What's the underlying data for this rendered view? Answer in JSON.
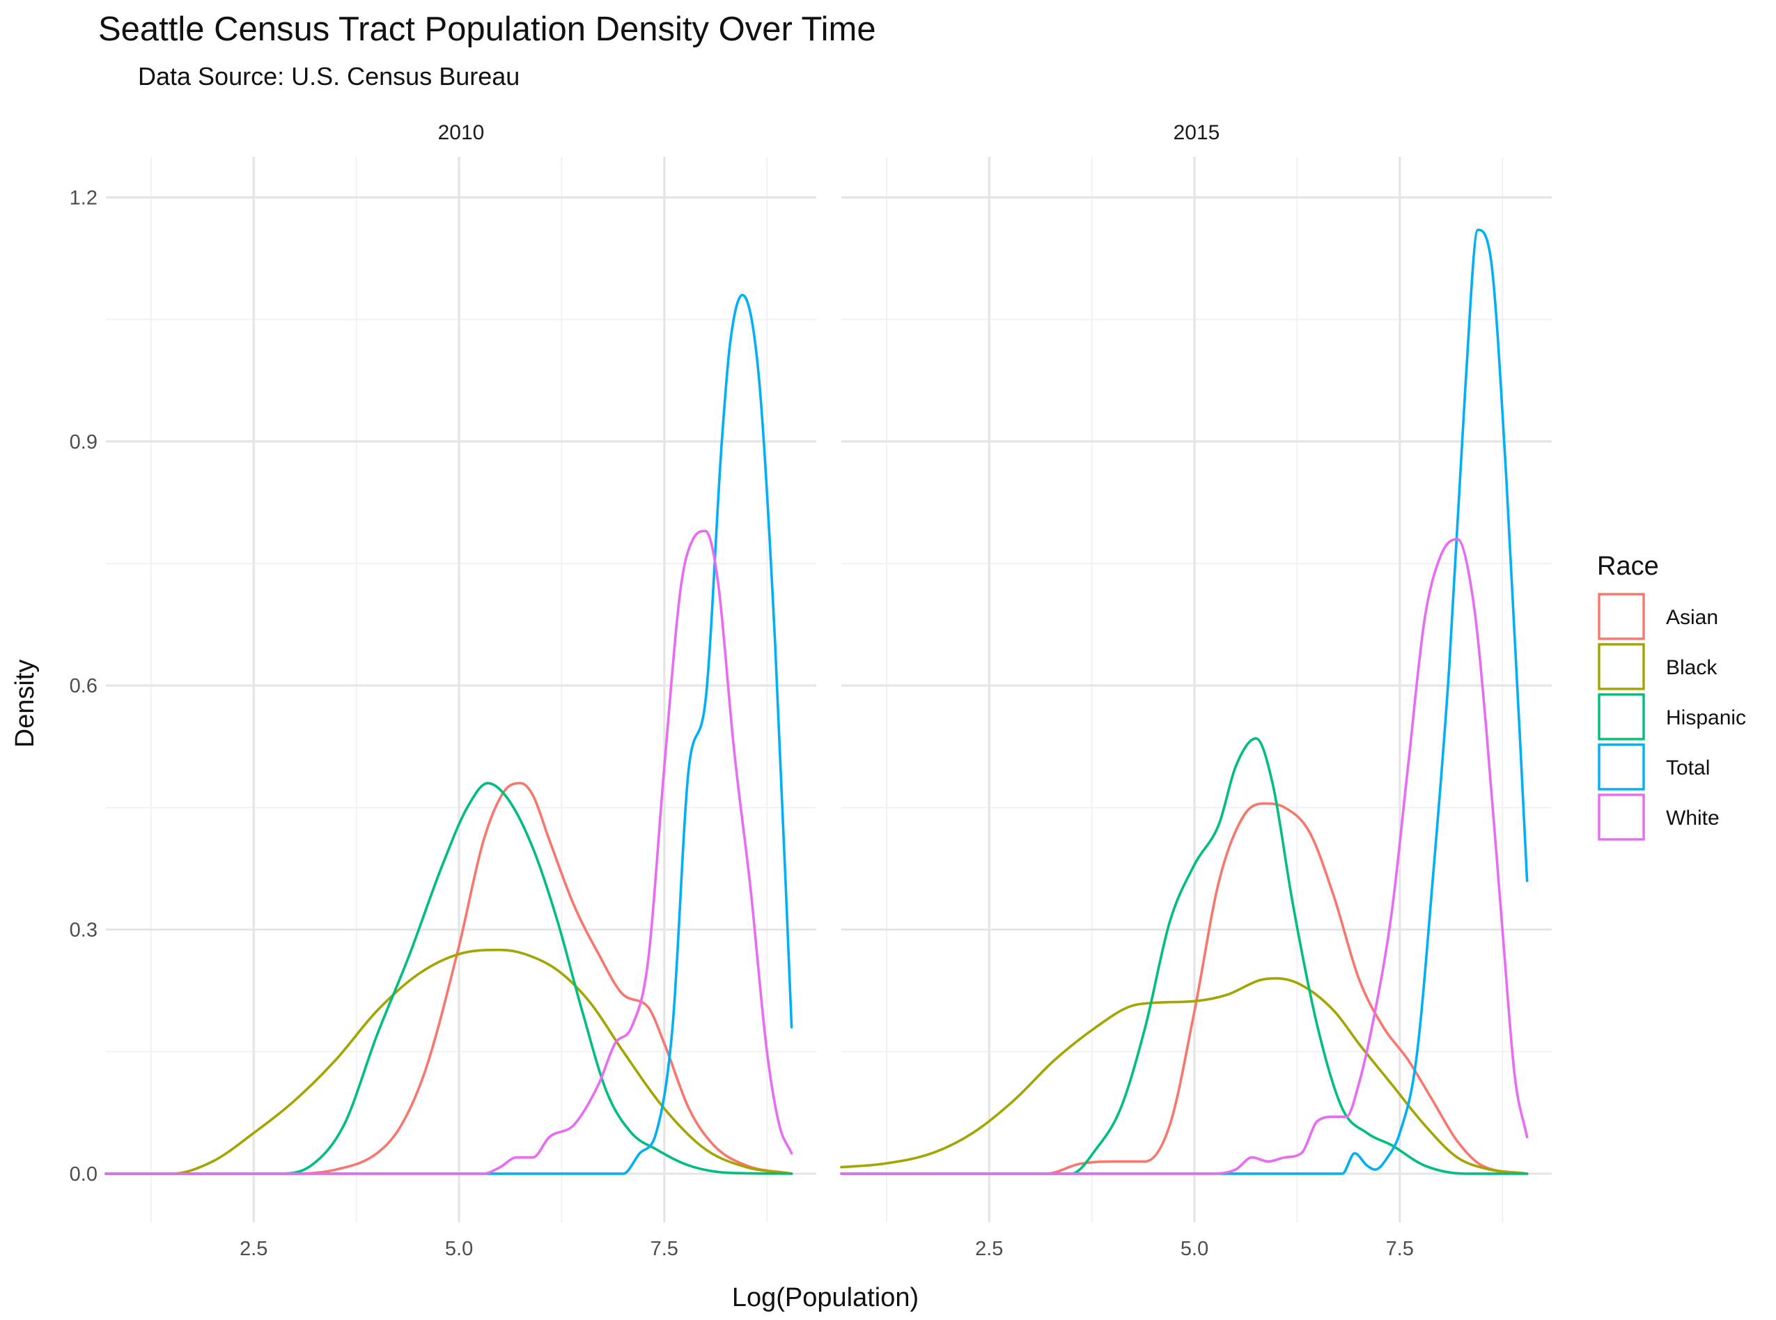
{
  "chart_data": {
    "type": "line",
    "title": "Seattle Census Tract Population Density Over Time",
    "subtitle": "Data Source: U.S. Census Bureau",
    "xlabel": "Log(Population)",
    "ylabel": "Density",
    "xlim": [
      0.7,
      9.35
    ],
    "ylim": [
      -0.06,
      1.25
    ],
    "x_ticks": [
      2.5,
      5.0,
      7.5
    ],
    "x_tick_labels": [
      "2.5",
      "5.0",
      "7.5"
    ],
    "y_ticks": [
      0.0,
      0.3,
      0.6,
      0.9,
      1.2
    ],
    "y_tick_labels": [
      "0.0",
      "0.3",
      "0.6",
      "0.9",
      "1.2"
    ],
    "grid": true,
    "legend": {
      "title": "Race",
      "position": "right"
    },
    "colors": {
      "Asian": "#F8766D",
      "Black": "#A3A500",
      "Hispanic": "#00BF7D",
      "Total": "#00B0F6",
      "White": "#E76BF3"
    },
    "series_order": [
      "Asian",
      "Black",
      "Hispanic",
      "Total",
      "White"
    ],
    "facets": [
      {
        "label": "2010",
        "series": [
          {
            "name": "Asian",
            "x": [
              0.7,
              3.0,
              3.5,
              4.0,
              4.3,
              4.6,
              5.0,
              5.3,
              5.55,
              5.75,
              5.9,
              6.1,
              6.4,
              6.7,
              7.0,
              7.3,
              7.5,
              7.8,
              8.1,
              8.5,
              9.05
            ],
            "y": [
              0,
              0,
              0.005,
              0.025,
              0.06,
              0.13,
              0.28,
              0.41,
              0.47,
              0.48,
              0.465,
              0.41,
              0.33,
              0.27,
              0.22,
              0.205,
              0.16,
              0.08,
              0.035,
              0.01,
              0
            ]
          },
          {
            "name": "Black",
            "x": [
              0.7,
              1.5,
              2.0,
              2.5,
              3.0,
              3.5,
              4.0,
              4.5,
              5.0,
              5.5,
              5.8,
              6.2,
              6.6,
              7.0,
              7.5,
              8.0,
              8.5,
              9.05
            ],
            "y": [
              0,
              0,
              0.015,
              0.05,
              0.09,
              0.14,
              0.2,
              0.245,
              0.27,
              0.275,
              0.27,
              0.25,
              0.21,
              0.15,
              0.08,
              0.03,
              0.008,
              0
            ]
          },
          {
            "name": "Hispanic",
            "x": [
              0.7,
              2.8,
              3.2,
              3.6,
              4.0,
              4.4,
              4.8,
              5.1,
              5.35,
              5.6,
              5.9,
              6.2,
              6.5,
              6.8,
              7.1,
              7.4,
              7.8,
              8.3,
              9.05
            ],
            "y": [
              0,
              0,
              0.01,
              0.06,
              0.17,
              0.27,
              0.38,
              0.45,
              0.48,
              0.46,
              0.4,
              0.31,
              0.2,
              0.1,
              0.05,
              0.03,
              0.01,
              0.001,
              0
            ]
          },
          {
            "name": "Total",
            "x": [
              0.7,
              7.0,
              7.2,
              7.4,
              7.6,
              7.8,
              8.0,
              8.2,
              8.3,
              8.45,
              8.65,
              8.85,
              9.05
            ],
            "y": [
              0,
              0,
              0.025,
              0.05,
              0.18,
              0.5,
              0.58,
              0.9,
              1.02,
              1.08,
              0.98,
              0.65,
              0.18
            ]
          },
          {
            "name": "White",
            "x": [
              0.7,
              5.3,
              5.5,
              5.7,
              5.9,
              6.1,
              6.4,
              6.7,
              6.9,
              7.1,
              7.3,
              7.5,
              7.7,
              7.85,
              8.0,
              8.15,
              8.35,
              8.55,
              8.75,
              8.9,
              9.05
            ],
            "y": [
              0,
              0,
              0.008,
              0.02,
              0.02,
              0.045,
              0.06,
              0.11,
              0.16,
              0.18,
              0.26,
              0.5,
              0.72,
              0.78,
              0.79,
              0.73,
              0.52,
              0.35,
              0.15,
              0.06,
              0.025
            ]
          }
        ]
      },
      {
        "label": "2015",
        "series": [
          {
            "name": "Asian",
            "x": [
              0.7,
              3.2,
              3.6,
              4.0,
              4.4,
              4.7,
              5.0,
              5.3,
              5.6,
              5.85,
              6.1,
              6.4,
              6.7,
              7.0,
              7.3,
              7.6,
              7.9,
              8.2,
              8.5,
              9.05
            ],
            "y": [
              0,
              0,
              0.012,
              0.015,
              0.015,
              0.06,
              0.2,
              0.36,
              0.44,
              0.455,
              0.45,
              0.42,
              0.34,
              0.24,
              0.18,
              0.14,
              0.09,
              0.04,
              0.01,
              0
            ]
          },
          {
            "name": "Black",
            "x": [
              0.7,
              1.2,
              1.8,
              2.3,
              2.8,
              3.3,
              3.8,
              4.2,
              4.5,
              5.0,
              5.4,
              5.8,
              6.0,
              6.3,
              6.7,
              7.0,
              7.4,
              7.8,
              8.2,
              8.6,
              9.05
            ],
            "y": [
              0.008,
              0.012,
              0.025,
              0.05,
              0.09,
              0.14,
              0.18,
              0.205,
              0.21,
              0.212,
              0.22,
              0.238,
              0.24,
              0.232,
              0.2,
              0.16,
              0.11,
              0.06,
              0.02,
              0.005,
              0
            ]
          },
          {
            "name": "Hispanic",
            "x": [
              0.7,
              3.5,
              3.8,
              4.1,
              4.4,
              4.7,
              5.0,
              5.3,
              5.5,
              5.75,
              5.95,
              6.2,
              6.5,
              6.8,
              7.1,
              7.4,
              7.8,
              8.3,
              9.05
            ],
            "y": [
              0,
              0,
              0.03,
              0.08,
              0.18,
              0.31,
              0.38,
              0.43,
              0.5,
              0.535,
              0.48,
              0.33,
              0.18,
              0.08,
              0.05,
              0.035,
              0.01,
              0,
              0
            ]
          },
          {
            "name": "Total",
            "x": [
              0.7,
              6.8,
              6.95,
              7.1,
              7.2,
              7.35,
              7.5,
              7.7,
              7.9,
              8.1,
              8.3,
              8.45,
              8.6,
              8.8,
              9.05
            ],
            "y": [
              0,
              0,
              0.025,
              0.01,
              0.005,
              0.02,
              0.05,
              0.14,
              0.36,
              0.62,
              0.97,
              1.16,
              1.13,
              0.85,
              0.36
            ]
          },
          {
            "name": "White",
            "x": [
              0.7,
              5.2,
              5.5,
              5.7,
              5.9,
              6.1,
              6.3,
              6.5,
              6.7,
              6.85,
              7.0,
              7.2,
              7.4,
              7.6,
              7.8,
              8.0,
              8.2,
              8.4,
              8.55,
              8.75,
              8.9,
              9.05
            ],
            "y": [
              0,
              0,
              0.005,
              0.02,
              0.015,
              0.02,
              0.025,
              0.065,
              0.07,
              0.07,
              0.11,
              0.2,
              0.32,
              0.5,
              0.68,
              0.76,
              0.78,
              0.7,
              0.55,
              0.3,
              0.12,
              0.045
            ]
          }
        ]
      }
    ]
  }
}
